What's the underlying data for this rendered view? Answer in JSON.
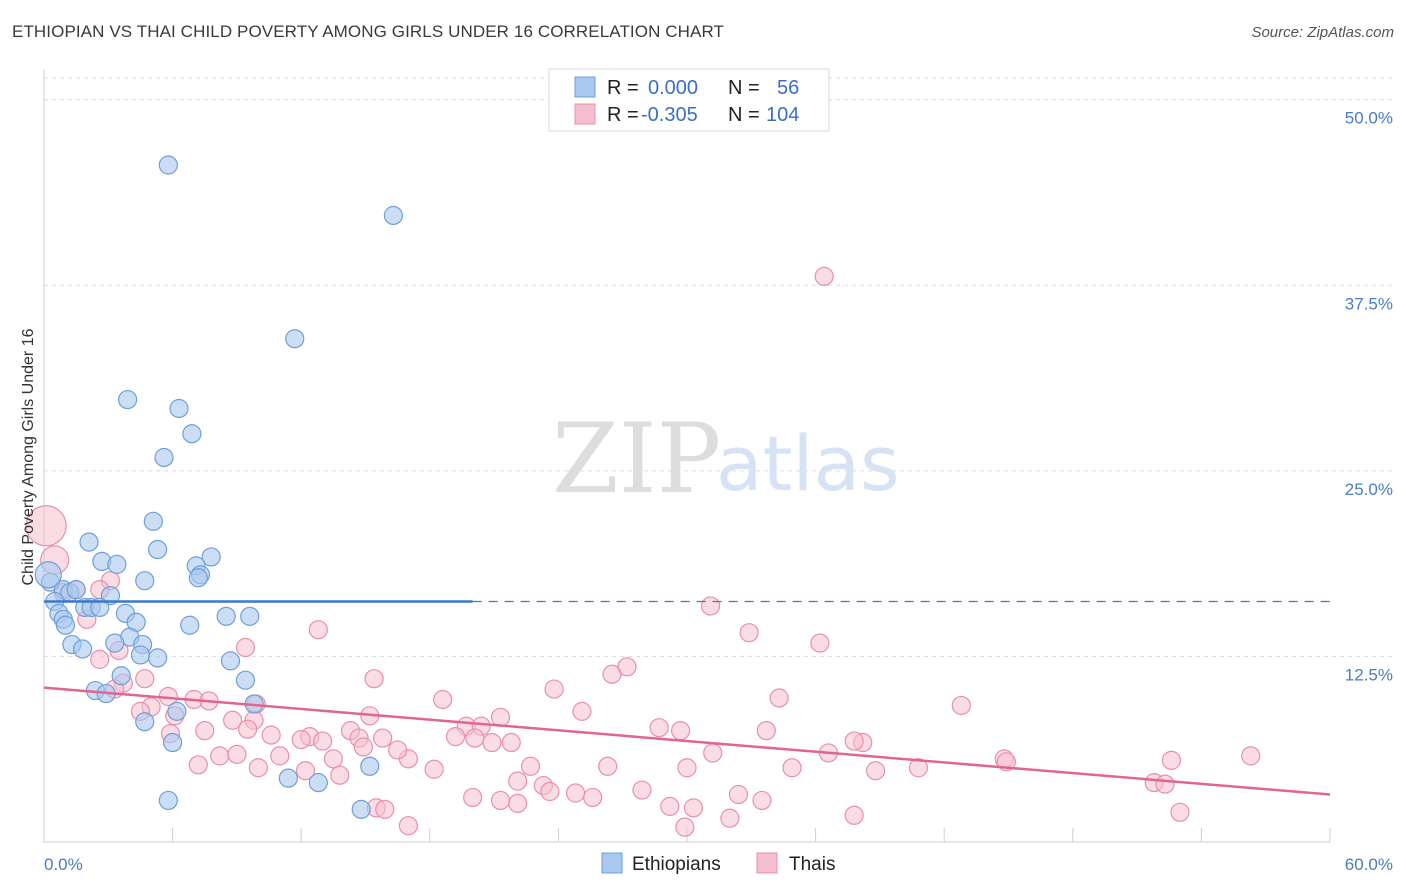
{
  "header": {
    "title": "ETHIOPIAN VS THAI CHILD POVERTY AMONG GIRLS UNDER 16 CORRELATION CHART",
    "source": "Source: ZipAtlas.com"
  },
  "watermark": {
    "zip": "ZIP",
    "atlas": "atlas"
  },
  "colors": {
    "blue_fill": "#a9c8ee",
    "blue_stroke": "#6f9fd8",
    "blue_line": "#3a78d0",
    "pink_fill": "#f6bfd0",
    "pink_stroke": "#e98fac",
    "pink_line": "#e0658f",
    "grid": "#dcdcdc",
    "axis": "#cfcfcf"
  },
  "legend": {
    "rows": [
      {
        "r_label": "R =",
        "r_value": "0.000",
        "n_label": "N =",
        "n_value": "56"
      },
      {
        "r_label": "R =",
        "r_value": "-0.305",
        "n_label": "N =",
        "n_value": "104"
      }
    ]
  },
  "chart_data": {
    "type": "scatter",
    "title": "ETHIOPIAN VS THAI CHILD POVERTY AMONG GIRLS UNDER 16 CORRELATION CHART",
    "xlabel": "",
    "ylabel": "Child Poverty Among Girls Under 16",
    "xlim": [
      0,
      60
    ],
    "ylim": [
      0,
      52
    ],
    "x_tick_labels": [
      "0.0%",
      "60.0%"
    ],
    "y_ticks": [
      12.5,
      25.0,
      37.5,
      50.0
    ],
    "y_tick_labels": [
      "12.5%",
      "25.0%",
      "37.5%",
      "50.0%"
    ],
    "grid": true,
    "legend_position": "top-center",
    "series": [
      {
        "name": "Ethiopians",
        "r": 0.0,
        "n": 56,
        "trend": {
          "x0": 0,
          "y0": 16.2,
          "x_solid_end": 20,
          "x1": 60,
          "y1": 16.2
        },
        "points": [
          [
            5.8,
            45.6
          ],
          [
            16.3,
            42.2
          ],
          [
            11.7,
            33.9
          ],
          [
            3.9,
            29.8
          ],
          [
            6.3,
            29.2
          ],
          [
            6.9,
            27.5
          ],
          [
            5.6,
            25.9
          ],
          [
            5.1,
            21.6
          ],
          [
            2.1,
            20.2
          ],
          [
            5.3,
            19.7
          ],
          [
            7.8,
            19.2
          ],
          [
            2.7,
            18.9
          ],
          [
            3.4,
            18.7
          ],
          [
            7.1,
            18.6
          ],
          [
            7.3,
            18.0
          ],
          [
            7.2,
            17.8
          ],
          [
            4.7,
            17.6
          ],
          [
            0.3,
            17.5
          ],
          [
            0.9,
            17.0
          ],
          [
            1.2,
            16.8
          ],
          [
            1.5,
            17.0
          ],
          [
            3.1,
            16.6
          ],
          [
            0.5,
            16.2
          ],
          [
            1.9,
            15.8
          ],
          [
            2.2,
            15.8
          ],
          [
            2.6,
            15.8
          ],
          [
            0.7,
            15.4
          ],
          [
            0.9,
            15.0
          ],
          [
            3.8,
            15.4
          ],
          [
            8.5,
            15.2
          ],
          [
            9.6,
            15.2
          ],
          [
            1.0,
            14.6
          ],
          [
            4.3,
            14.8
          ],
          [
            6.8,
            14.6
          ],
          [
            4.0,
            13.8
          ],
          [
            3.3,
            13.4
          ],
          [
            4.6,
            13.3
          ],
          [
            1.3,
            13.3
          ],
          [
            1.8,
            13.0
          ],
          [
            4.5,
            12.6
          ],
          [
            5.3,
            12.4
          ],
          [
            8.7,
            12.2
          ],
          [
            3.6,
            11.2
          ],
          [
            9.4,
            10.9
          ],
          [
            2.4,
            10.2
          ],
          [
            2.9,
            10.0
          ],
          [
            9.8,
            9.3
          ],
          [
            6.2,
            8.8
          ],
          [
            4.7,
            8.1
          ],
          [
            6.0,
            6.7
          ],
          [
            11.4,
            4.3
          ],
          [
            12.8,
            4.0
          ],
          [
            15.2,
            5.1
          ],
          [
            5.8,
            2.8
          ],
          [
            14.8,
            2.2
          ],
          [
            0.2,
            18.0
          ]
        ]
      },
      {
        "name": "Thais",
        "r": -0.305,
        "n": 104,
        "trend": {
          "x0": 0,
          "y0": 10.4,
          "x1": 60,
          "y1": 3.2
        },
        "points": [
          [
            36.4,
            38.1
          ],
          [
            0.1,
            21.3
          ],
          [
            0.5,
            19.0
          ],
          [
            3.1,
            17.6
          ],
          [
            1.5,
            17.0
          ],
          [
            2.6,
            17.0
          ],
          [
            0.9,
            16.8
          ],
          [
            31.1,
            15.9
          ],
          [
            2.0,
            15.0
          ],
          [
            12.8,
            14.3
          ],
          [
            32.9,
            14.1
          ],
          [
            36.2,
            13.4
          ],
          [
            9.4,
            13.1
          ],
          [
            3.5,
            12.9
          ],
          [
            2.6,
            12.3
          ],
          [
            27.2,
            11.8
          ],
          [
            26.5,
            11.3
          ],
          [
            15.4,
            11.0
          ],
          [
            4.7,
            11.0
          ],
          [
            3.7,
            10.7
          ],
          [
            3.3,
            10.3
          ],
          [
            23.8,
            10.3
          ],
          [
            5.8,
            9.8
          ],
          [
            34.3,
            9.7
          ],
          [
            18.6,
            9.6
          ],
          [
            7.0,
            9.6
          ],
          [
            7.7,
            9.5
          ],
          [
            9.9,
            9.3
          ],
          [
            42.8,
            9.2
          ],
          [
            5.0,
            9.1
          ],
          [
            4.5,
            8.8
          ],
          [
            25.1,
            8.8
          ],
          [
            15.2,
            8.5
          ],
          [
            6.1,
            8.5
          ],
          [
            21.3,
            8.4
          ],
          [
            8.8,
            8.2
          ],
          [
            9.8,
            8.2
          ],
          [
            19.7,
            7.8
          ],
          [
            20.4,
            7.8
          ],
          [
            28.7,
            7.7
          ],
          [
            7.5,
            7.5
          ],
          [
            9.5,
            7.6
          ],
          [
            29.7,
            7.5
          ],
          [
            33.7,
            7.5
          ],
          [
            14.3,
            7.5
          ],
          [
            5.9,
            7.3
          ],
          [
            10.6,
            7.2
          ],
          [
            12.4,
            7.1
          ],
          [
            19.2,
            7.1
          ],
          [
            20.1,
            7.0
          ],
          [
            15.8,
            7.0
          ],
          [
            14.7,
            7.0
          ],
          [
            12.0,
            6.9
          ],
          [
            13.0,
            6.8
          ],
          [
            20.9,
            6.7
          ],
          [
            21.8,
            6.7
          ],
          [
            38.2,
            6.7
          ],
          [
            37.8,
            6.8
          ],
          [
            8.2,
            5.8
          ],
          [
            9.0,
            5.9
          ],
          [
            11.0,
            5.8
          ],
          [
            13.5,
            5.6
          ],
          [
            17.0,
            5.6
          ],
          [
            16.5,
            6.2
          ],
          [
            14.9,
            6.4
          ],
          [
            31.2,
            6.0
          ],
          [
            36.6,
            6.0
          ],
          [
            40.8,
            5.0
          ],
          [
            44.8,
            5.6
          ],
          [
            52.6,
            5.5
          ],
          [
            56.3,
            5.8
          ],
          [
            7.2,
            5.2
          ],
          [
            10.0,
            5.0
          ],
          [
            12.2,
            4.8
          ],
          [
            13.8,
            4.5
          ],
          [
            18.2,
            4.9
          ],
          [
            22.7,
            5.1
          ],
          [
            26.3,
            5.1
          ],
          [
            30.0,
            5.0
          ],
          [
            34.9,
            5.0
          ],
          [
            38.8,
            4.8
          ],
          [
            51.8,
            4.0
          ],
          [
            52.3,
            3.9
          ],
          [
            22.1,
            4.1
          ],
          [
            23.3,
            3.8
          ],
          [
            24.8,
            3.3
          ],
          [
            27.9,
            3.5
          ],
          [
            20.0,
            3.0
          ],
          [
            21.3,
            2.8
          ],
          [
            22.1,
            2.6
          ],
          [
            23.6,
            3.4
          ],
          [
            25.6,
            3.0
          ],
          [
            29.2,
            2.4
          ],
          [
            30.3,
            2.3
          ],
          [
            32.4,
            3.2
          ],
          [
            33.5,
            2.8
          ],
          [
            15.5,
            2.3
          ],
          [
            15.9,
            2.2
          ],
          [
            17.0,
            1.1
          ],
          [
            29.9,
            1.0
          ],
          [
            32.0,
            1.6
          ],
          [
            37.8,
            1.8
          ],
          [
            44.9,
            5.4
          ],
          [
            53.0,
            2.0
          ]
        ]
      }
    ]
  },
  "bottom_legend": {
    "items": [
      "Ethiopians",
      "Thais"
    ]
  }
}
